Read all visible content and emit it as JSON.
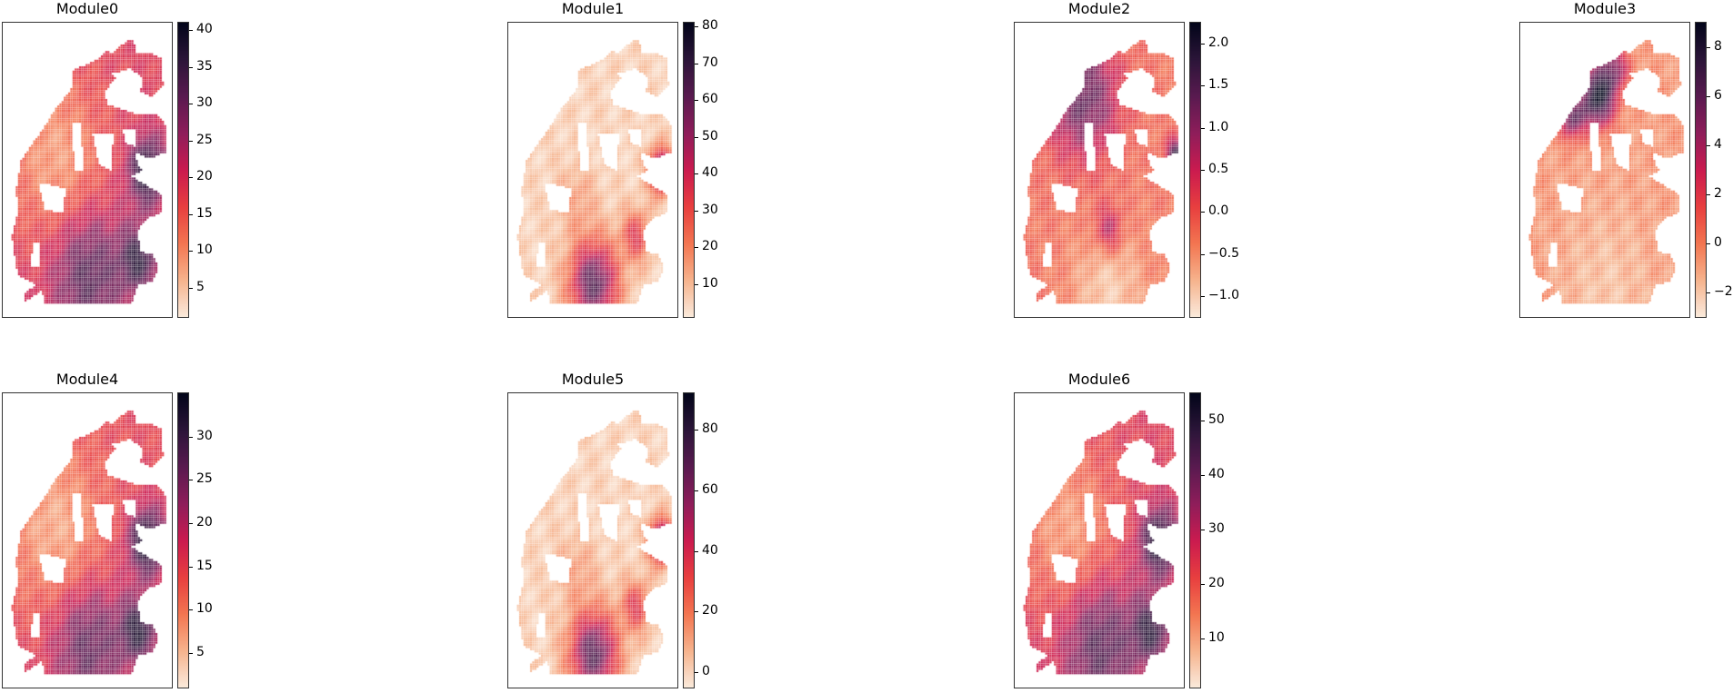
{
  "chart_data": [
    {
      "type": "heatmap",
      "title": "Module0",
      "colormap": "rocket_r",
      "clim": [
        1,
        41
      ],
      "ticks": [
        5,
        10,
        15,
        20,
        25,
        30,
        35,
        40
      ],
      "tick_labels": [
        "5",
        "10",
        "15",
        "20",
        "25",
        "30",
        "35",
        "40"
      ]
    },
    {
      "type": "heatmap",
      "title": "Module1",
      "colormap": "rocket_r",
      "clim": [
        1,
        81
      ],
      "ticks": [
        10,
        20,
        30,
        40,
        50,
        60,
        70,
        80
      ],
      "tick_labels": [
        "10",
        "20",
        "30",
        "40",
        "50",
        "60",
        "70",
        "80"
      ]
    },
    {
      "type": "heatmap",
      "title": "Module2",
      "colormap": "rocket_r",
      "clim": [
        -1.25,
        2.25
      ],
      "ticks": [
        -1.0,
        -0.5,
        0.0,
        0.5,
        1.0,
        1.5,
        2.0
      ],
      "tick_labels": [
        "−1.0",
        "−0.5",
        "0.0",
        "0.5",
        "1.0",
        "1.5",
        "2.0"
      ]
    },
    {
      "type": "heatmap",
      "title": "Module3",
      "colormap": "rocket_r",
      "clim": [
        -3,
        9
      ],
      "ticks": [
        -2,
        0,
        2,
        4,
        6,
        8
      ],
      "tick_labels": [
        "−2",
        "0",
        "2",
        "4",
        "6",
        "8"
      ]
    },
    {
      "type": "heatmap",
      "title": "Module4",
      "colormap": "rocket_r",
      "clim": [
        1,
        35
      ],
      "ticks": [
        5,
        10,
        15,
        20,
        25,
        30
      ],
      "tick_labels": [
        "5",
        "10",
        "15",
        "20",
        "25",
        "30"
      ]
    },
    {
      "type": "heatmap",
      "title": "Module5",
      "colormap": "rocket_r",
      "clim": [
        -5,
        92
      ],
      "ticks": [
        0,
        20,
        40,
        60,
        80
      ],
      "tick_labels": [
        "0",
        "20",
        "40",
        "60",
        "80"
      ]
    },
    {
      "type": "heatmap",
      "title": "Module6",
      "colormap": "rocket_r",
      "clim": [
        1,
        55
      ],
      "ticks": [
        10,
        20,
        30,
        40,
        50
      ],
      "tick_labels": [
        "10",
        "20",
        "30",
        "40",
        "50"
      ]
    }
  ],
  "colors": {
    "cmap_stops": [
      "#faebdd",
      "#f6b48e",
      "#f37651",
      "#e83f3f",
      "#cb1b4f",
      "#8f1d5a",
      "#5a1a50",
      "#2c1539",
      "#03051a"
    ]
  }
}
